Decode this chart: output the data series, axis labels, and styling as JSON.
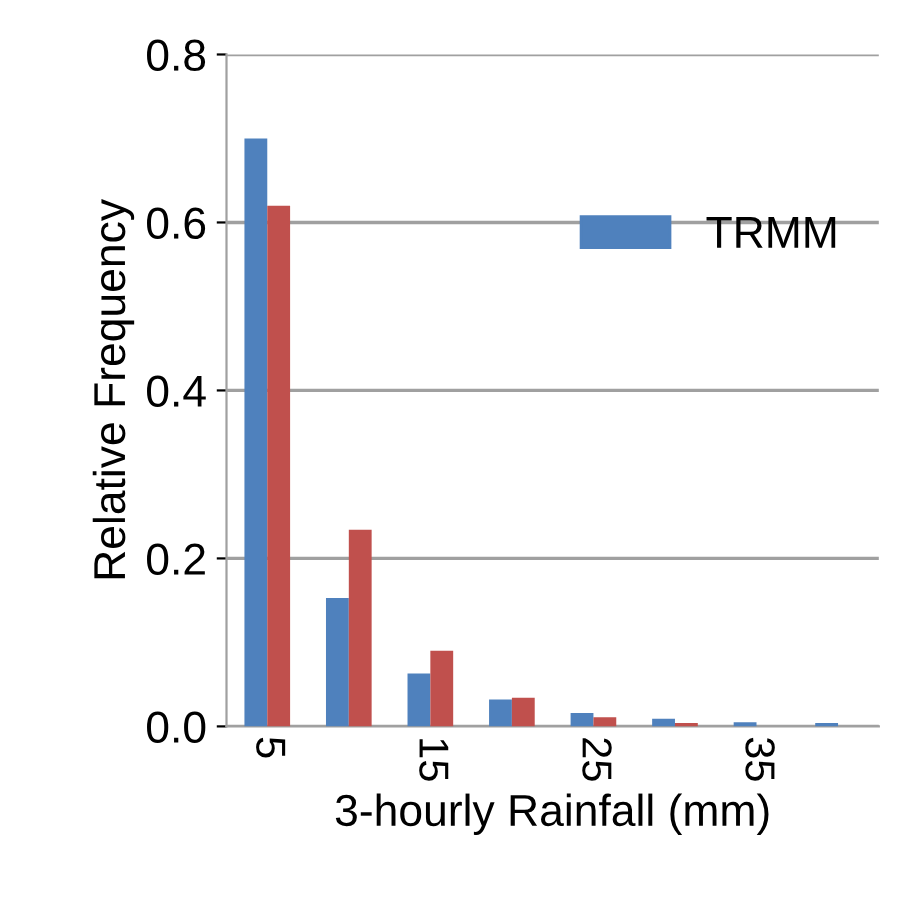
{
  "chart_data": {
    "type": "bar",
    "xlabel": "3-hourly Rainfall (mm)",
    "ylabel": "Relative Frequency",
    "categories": [
      "5",
      null,
      "15",
      null,
      "25",
      null,
      "35",
      null
    ],
    "series": [
      {
        "name": "TRMM",
        "color": "#4f81bd",
        "values": [
          0.7,
          0.153,
          0.063,
          0.032,
          0.016,
          0.009,
          0.005,
          0.004
        ]
      },
      {
        "color": "#c0504d",
        "values": [
          0.62,
          0.234,
          0.09,
          0.034,
          0.011,
          0.004,
          null,
          null
        ]
      }
    ],
    "ylim": [
      0,
      0.8
    ],
    "yticks": [
      {
        "value": 0,
        "label": "0.0"
      },
      {
        "value": 0.2,
        "label": "0.2"
      },
      {
        "value": 0.4,
        "label": "0.4"
      },
      {
        "value": 0.6,
        "label": "0.6"
      },
      {
        "value": 0.8,
        "label": "0.8"
      }
    ],
    "grid": "y",
    "legend": "top right"
  }
}
